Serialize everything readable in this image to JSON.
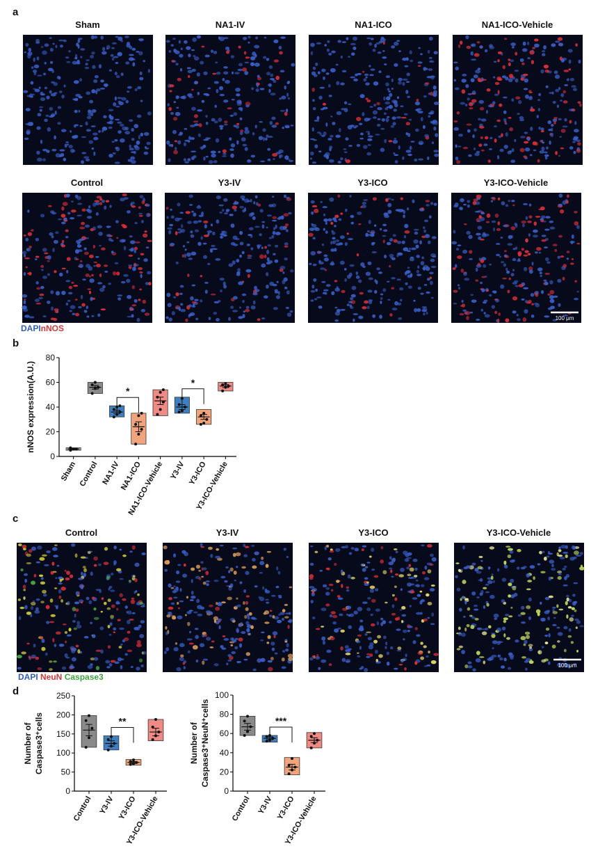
{
  "panels": {
    "a": {
      "label": "a",
      "titles": [
        "Sham",
        "NA1-IV",
        "NA1-ICO",
        "NA1-ICO-Vehicle",
        "Control",
        "Y3-IV",
        "Y3-ICO",
        "Y3-ICO-Vehicle"
      ],
      "scale_bar": "100 μm",
      "stains": [
        "DAPI",
        "nNOS"
      ],
      "stain_colors": [
        "#2f5fb0",
        "#d43a3a"
      ]
    },
    "b": {
      "label": "b"
    },
    "c": {
      "label": "c",
      "titles": [
        "Control",
        "Y3-IV",
        "Y3-ICO",
        "Y3-ICO-Vehicle"
      ],
      "scale_bar": "100 μm",
      "stains": [
        "DAPI",
        "NeuN",
        "Caspase3"
      ],
      "stain_colors": [
        "#2f5fb0",
        "#d43a3a",
        "#3fa33f"
      ]
    },
    "d": {
      "label": "d"
    }
  },
  "chart_data": [
    {
      "type": "box",
      "ylabel": [
        "nNOS expression(A.U.)"
      ],
      "categories": [
        "Sham",
        "Control",
        "NA1-IV",
        "NA1-ICO",
        "NA1-ICO-Vehicle",
        "Y3-IV",
        "Y3-ICO",
        "Y3-ICO-Vehicle"
      ],
      "colors": [
        "#a8a8a8",
        "#8a8a8a",
        "#3f7fc0",
        "#f2a57c",
        "#f08a84",
        "#3f7fc0",
        "#f2a57c",
        "#f08a84"
      ],
      "low": [
        5,
        51,
        32,
        10,
        33,
        35,
        26,
        53
      ],
      "high": [
        7,
        60,
        41,
        35,
        54,
        48,
        38,
        60
      ],
      "mean": [
        6,
        56,
        36,
        24,
        45,
        40,
        32,
        57
      ],
      "error": [
        0.5,
        1.5,
        1.5,
        4,
        3,
        2,
        2,
        1.2
      ],
      "points": [
        [
          5,
          6,
          6,
          7,
          6
        ],
        [
          51,
          55,
          56,
          58,
          60
        ],
        [
          32,
          34,
          36,
          38,
          40,
          41
        ],
        [
          10,
          18,
          22,
          26,
          33,
          35
        ],
        [
          34,
          38,
          44,
          48,
          52,
          54
        ],
        [
          36,
          37,
          40,
          42,
          47
        ],
        [
          26,
          27,
          30,
          33,
          35
        ],
        [
          53,
          56,
          57,
          58,
          59
        ]
      ],
      "ylim": [
        0,
        80
      ],
      "yticks": [
        0,
        20,
        40,
        60,
        80
      ],
      "annotations": [
        {
          "from": 2,
          "to": 3,
          "label": "*"
        },
        {
          "from": 5,
          "to": 6,
          "label": "*"
        }
      ]
    },
    {
      "type": "box",
      "ylabel": [
        "Number of",
        "Caspase3⁺cells"
      ],
      "categories": [
        "Control",
        "Y3-IV",
        "Y3-ICO",
        "Y3-ICO-Vehicle"
      ],
      "colors": [
        "#8a8a8a",
        "#3f7fc0",
        "#f2a57c",
        "#f08a84"
      ],
      "low": [
        115,
        108,
        68,
        132
      ],
      "high": [
        198,
        145,
        83,
        188
      ],
      "mean": [
        160,
        125,
        75,
        155
      ],
      "error": [
        15,
        7,
        2.5,
        10
      ],
      "points": [
        [
          115,
          140,
          165,
          185,
          198
        ],
        [
          108,
          118,
          125,
          135,
          143
        ],
        [
          70,
          72,
          75,
          78,
          82
        ],
        [
          135,
          145,
          155,
          168,
          188
        ]
      ],
      "ylim": [
        0,
        250
      ],
      "yticks": [
        0,
        50,
        100,
        150,
        200,
        250
      ],
      "annotations": [
        {
          "from": 1,
          "to": 2,
          "label": "**"
        }
      ]
    },
    {
      "type": "box",
      "ylabel": [
        "Number of",
        "Caspase3⁺NeuN⁺cells"
      ],
      "categories": [
        "Control",
        "Y3-IV",
        "Y3-ICO",
        "Y3-ICO-Vehicle"
      ],
      "colors": [
        "#8a8a8a",
        "#3f7fc0",
        "#f2a57c",
        "#f08a84"
      ],
      "low": [
        58,
        51,
        17,
        45
      ],
      "high": [
        78,
        58,
        35,
        61
      ],
      "mean": [
        67,
        55,
        25,
        53
      ],
      "error": [
        3.5,
        1.5,
        3,
        2.5
      ],
      "points": [
        [
          58,
          62,
          67,
          73,
          78
        ],
        [
          52,
          53,
          55,
          57,
          58
        ],
        [
          18,
          22,
          25,
          27,
          34
        ],
        [
          45,
          50,
          53,
          57,
          60
        ]
      ],
      "ylim": [
        0,
        100
      ],
      "yticks": [
        0,
        20,
        40,
        60,
        80,
        100
      ],
      "annotations": [
        {
          "from": 1,
          "to": 2,
          "label": "***"
        }
      ]
    }
  ]
}
